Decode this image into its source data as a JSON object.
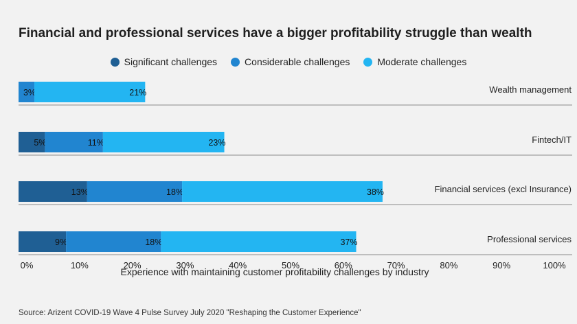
{
  "chart_data": {
    "type": "bar",
    "orientation": "horizontal",
    "stacked": true,
    "title": "Financial and professional services have a bigger profitability struggle than wealth",
    "xlabel": "Experience with maintaining customer profitability challenges by industry",
    "source": "Source: Arizent COVID-19 Wave 4 Pulse Survey July 2020 \"Reshaping the Customer Experience\"",
    "categories": [
      "Wealth management",
      "Fintech/IT",
      "Financial services (excl Insurance)",
      "Professional services"
    ],
    "series": [
      {
        "name": "Significant challenges",
        "color": "#1f5f94",
        "values": [
          0,
          5,
          13,
          9
        ],
        "labels": [
          "",
          "5%",
          "13%",
          "9%"
        ]
      },
      {
        "name": "Considerable challenges",
        "color": "#2185d0",
        "values": [
          3,
          11,
          18,
          18
        ],
        "labels": [
          "3%",
          "11%",
          "18%",
          "18%"
        ]
      },
      {
        "name": "Moderate challenges",
        "color": "#23b5f2",
        "values": [
          21,
          23,
          38,
          37
        ],
        "labels": [
          "21%",
          "23%",
          "38%",
          "37%"
        ]
      }
    ],
    "xlim": [
      0,
      100
    ],
    "xticks": [
      "0%",
      "10%",
      "20%",
      "30%",
      "40%",
      "50%",
      "60%",
      "70%",
      "80%",
      "90%",
      "100%"
    ],
    "legend_position": "top-center",
    "grid": false
  }
}
